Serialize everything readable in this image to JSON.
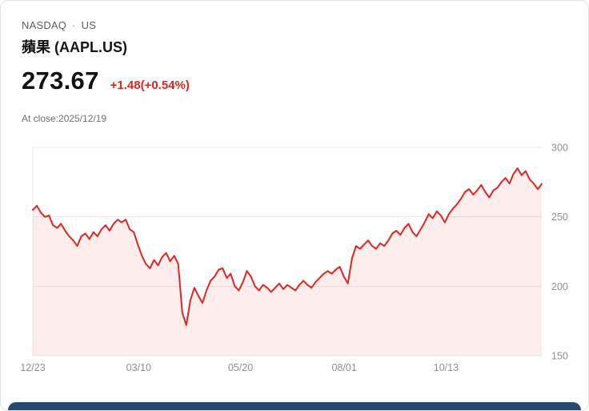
{
  "header": {
    "exchange": "NASDAQ",
    "dot": "·",
    "region": "US",
    "title": "蘋果 (AAPL.US)"
  },
  "quote": {
    "price": "273.67",
    "change": "+1.48(+0.54%)",
    "close_label": "At close:2025/12/19"
  },
  "colors": {
    "line": "#e0261f",
    "fill": "#e0261f",
    "fill_opacity": 0.08,
    "change_text": "#e0261f",
    "grid": "#e9e9e9",
    "axis_text": "#8f8f8f",
    "footer_bar": "#27496d"
  },
  "chart_data": {
    "type": "line",
    "title": "AAPL.US 1-year price line chart",
    "ylabel": "",
    "xlabel": "",
    "ylim": [
      150,
      300
    ],
    "y_ticks": [
      300,
      250,
      200,
      150
    ],
    "x_ticks": [
      {
        "label": "12/23",
        "pos": 0.0
      },
      {
        "label": "03/10",
        "pos": 0.208
      },
      {
        "label": "05/20",
        "pos": 0.408
      },
      {
        "label": "08/01",
        "pos": 0.612
      },
      {
        "label": "10/13",
        "pos": 0.812
      }
    ],
    "legend": [],
    "grid": true,
    "values": [
      255,
      258,
      253,
      250,
      251,
      244,
      242,
      245,
      240,
      236,
      233,
      229,
      236,
      238,
      234,
      239,
      236,
      241,
      244,
      240,
      245,
      248,
      246,
      248,
      241,
      239,
      230,
      222,
      216,
      213,
      219,
      215,
      221,
      224,
      218,
      222,
      216,
      181,
      172,
      190,
      199,
      193,
      188,
      197,
      204,
      207,
      212,
      213,
      206,
      209,
      200,
      197,
      203,
      211,
      207,
      200,
      197,
      201,
      199,
      196,
      199,
      202,
      198,
      201,
      199,
      197,
      201,
      204,
      201,
      199,
      203,
      206,
      209,
      211,
      209,
      212,
      214,
      207,
      202,
      220,
      229,
      227,
      230,
      233,
      229,
      227,
      231,
      229,
      233,
      238,
      240,
      237,
      242,
      245,
      239,
      236,
      241,
      246,
      252,
      249,
      254,
      251,
      246,
      252,
      256,
      259,
      263,
      268,
      270,
      266,
      269,
      273,
      268,
      264,
      269,
      271,
      275,
      278,
      274,
      281,
      285,
      280,
      283,
      277,
      274,
      270,
      273.67
    ]
  }
}
